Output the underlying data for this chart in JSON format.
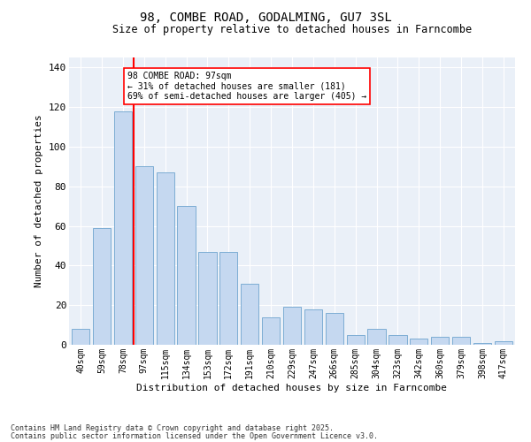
{
  "title": "98, COMBE ROAD, GODALMING, GU7 3SL",
  "subtitle": "Size of property relative to detached houses in Farncombe",
  "xlabel": "Distribution of detached houses by size in Farncombe",
  "ylabel": "Number of detached properties",
  "categories": [
    "40sqm",
    "59sqm",
    "78sqm",
    "97sqm",
    "115sqm",
    "134sqm",
    "153sqm",
    "172sqm",
    "191sqm",
    "210sqm",
    "229sqm",
    "247sqm",
    "266sqm",
    "285sqm",
    "304sqm",
    "323sqm",
    "342sqm",
    "360sqm",
    "379sqm",
    "398sqm",
    "417sqm"
  ],
  "bar_values": [
    8,
    59,
    118,
    90,
    87,
    70,
    47,
    47,
    31,
    14,
    19,
    18,
    16,
    5,
    8,
    5,
    3,
    4,
    4,
    1,
    2
  ],
  "bar_color": "#c5d8f0",
  "bar_edge_color": "#7dadd4",
  "vline_color": "red",
  "annotation_text": "98 COMBE ROAD: 97sqm\n← 31% of detached houses are smaller (181)\n69% of semi-detached houses are larger (405) →",
  "annotation_box_color": "white",
  "annotation_box_edge": "red",
  "ylim": [
    0,
    145
  ],
  "yticks": [
    0,
    20,
    40,
    60,
    80,
    100,
    120,
    140
  ],
  "bg_color": "#eaf0f8",
  "footer1": "Contains HM Land Registry data © Crown copyright and database right 2025.",
  "footer2": "Contains public sector information licensed under the Open Government Licence v3.0."
}
